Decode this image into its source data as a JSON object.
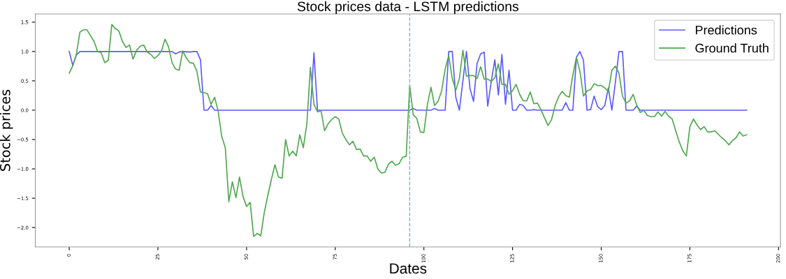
{
  "chart_data": {
    "type": "line",
    "title": "Stock prices data - LSTM predictions",
    "xlabel": "Dates",
    "ylabel": "Stock prices",
    "x": [
      0,
      1,
      2,
      3,
      4,
      5,
      6,
      7,
      8,
      9,
      10,
      11,
      12,
      13,
      14,
      15,
      16,
      17,
      18,
      19,
      20,
      21,
      22,
      23,
      24,
      25,
      26,
      27,
      28,
      29,
      30,
      31,
      32,
      33,
      34,
      35,
      36,
      37,
      38,
      39,
      40,
      41,
      42,
      43,
      44,
      45,
      46,
      47,
      48,
      49,
      50,
      51,
      52,
      53,
      54,
      55,
      56,
      57,
      58,
      59,
      60,
      61,
      62,
      63,
      64,
      65,
      66,
      67,
      68,
      69,
      70,
      71,
      72,
      73,
      74,
      75,
      76,
      77,
      78,
      79,
      80,
      81,
      82,
      83,
      84,
      85,
      86,
      87,
      88,
      89,
      90,
      91,
      92,
      93,
      94,
      95,
      96,
      97,
      98,
      99,
      100,
      101,
      102,
      103,
      104,
      105,
      106,
      107,
      108,
      109,
      110,
      111,
      112,
      113,
      114,
      115,
      116,
      117,
      118,
      119,
      120,
      121,
      122,
      123,
      124,
      125,
      126,
      127,
      128,
      129,
      130,
      131,
      132,
      133,
      134,
      135,
      136,
      137,
      138,
      139,
      140,
      141,
      142,
      143,
      144,
      145,
      146,
      147,
      148,
      149,
      150,
      151,
      152,
      153,
      154,
      155,
      156,
      157,
      158,
      159,
      160,
      161,
      162,
      163,
      164,
      165,
      166,
      167,
      168,
      169,
      170,
      171,
      172,
      173,
      174,
      175,
      176,
      177,
      178,
      179,
      180,
      181,
      182,
      183,
      184,
      185,
      186,
      187,
      188,
      189,
      190,
      191
    ],
    "series": [
      {
        "name": "Predictions",
        "color": "#5a5aff",
        "x": [
          0,
          1,
          2,
          3,
          29,
          30,
          31,
          32,
          34,
          35,
          36,
          37,
          38,
          39,
          40,
          41,
          68,
          69,
          70,
          96,
          97,
          98,
          102,
          103,
          104,
          106,
          107,
          108,
          109,
          110,
          111,
          112,
          113,
          114,
          115,
          116,
          117,
          118,
          119,
          120,
          121,
          122,
          123,
          124,
          125,
          126,
          127,
          128,
          129,
          130,
          131,
          132,
          139,
          140,
          141,
          142,
          143,
          144,
          145,
          146,
          147,
          148,
          149,
          150,
          151,
          152,
          153,
          154,
          155,
          156,
          157,
          159,
          160,
          161,
          191
        ],
        "values": [
          1.0,
          0.76,
          0.94,
          1.0,
          1.0,
          0.96,
          0.99,
          1.0,
          0.99,
          1.0,
          1.0,
          0.86,
          0.0,
          0.0,
          0.08,
          0.0,
          0.0,
          0.98,
          0.0,
          0.0,
          0.03,
          0.0,
          0.0,
          0.03,
          0.0,
          0.0,
          1.0,
          1.0,
          0.22,
          0.0,
          0.5,
          1.0,
          0.37,
          0.15,
          0.8,
          0.96,
          0.99,
          0.07,
          0.49,
          0.86,
          0.26,
          0.95,
          0.1,
          0.68,
          0.0,
          0.0,
          0.1,
          0.08,
          0.0,
          0.0,
          0.01,
          0.0,
          0.0,
          0.13,
          0.0,
          0.0,
          0.9,
          1.0,
          0.85,
          0.0,
          0.01,
          0.24,
          0.06,
          0.01,
          0.08,
          0.38,
          0.0,
          0.48,
          1.0,
          1.0,
          0.0,
          0.0,
          0.07,
          0.0,
          0.0
        ]
      },
      {
        "name": "Ground Truth",
        "color": "#4fa84f",
        "values": [
          0.63,
          0.76,
          0.95,
          1.33,
          1.37,
          1.37,
          1.27,
          1.17,
          1.0,
          0.98,
          0.81,
          0.85,
          1.46,
          1.39,
          1.35,
          1.17,
          1.07,
          1.11,
          0.87,
          1.02,
          1.09,
          1.11,
          0.99,
          0.95,
          0.88,
          0.93,
          1.01,
          1.21,
          1.08,
          0.81,
          0.7,
          0.68,
          1.01,
          0.89,
          0.81,
          0.8,
          0.66,
          0.31,
          0.3,
          0.28,
          0.1,
          0.22,
          -0.02,
          -0.45,
          -0.64,
          -1.56,
          -1.22,
          -1.49,
          -1.14,
          -1.47,
          -1.64,
          -1.57,
          -2.15,
          -2.1,
          -2.14,
          -1.74,
          -1.45,
          -1.18,
          -0.93,
          -1.14,
          -1.16,
          -0.5,
          -0.78,
          -0.7,
          -0.78,
          -0.42,
          -0.64,
          -0.23,
          0.73,
          0.1,
          -0.03,
          -0.01,
          -0.35,
          -0.23,
          -0.16,
          -0.11,
          -0.15,
          -0.39,
          -0.5,
          -0.59,
          -0.53,
          -0.67,
          -0.66,
          -0.78,
          -0.78,
          -0.87,
          -0.8,
          -1.0,
          -1.07,
          -1.06,
          -0.92,
          -0.87,
          -0.94,
          -0.91,
          -0.8,
          -0.79,
          0.42,
          -0.08,
          -0.14,
          -0.37,
          -0.38,
          0.1,
          0.39,
          0.08,
          0.15,
          0.33,
          0.7,
          0.93,
          0.54,
          0.34,
          0.54,
          1.02,
          0.58,
          0.59,
          0.59,
          0.54,
          0.74,
          0.53,
          0.53,
          0.49,
          0.55,
          0.79,
          0.44,
          0.44,
          0.27,
          0.33,
          0.44,
          0.27,
          0.16,
          0.16,
          0.31,
          0.11,
          0.12,
          0.01,
          -0.13,
          -0.26,
          -0.16,
          0.08,
          0.23,
          0.32,
          0.25,
          0.22,
          0.6,
          0.9,
          0.66,
          0.24,
          0.33,
          0.35,
          0.45,
          0.42,
          0.42,
          0.38,
          0.32,
          0.68,
          0.75,
          0.63,
          0.24,
          0.12,
          0.16,
          0.27,
          0.09,
          -0.04,
          0.0,
          -0.09,
          -0.11,
          -0.11,
          -0.03,
          -0.1,
          -0.02,
          -0.1,
          -0.15,
          -0.35,
          -0.54,
          -0.69,
          -0.78,
          -0.28,
          -0.15,
          -0.25,
          -0.33,
          -0.28,
          -0.37,
          -0.37,
          -0.35,
          -0.41,
          -0.47,
          -0.52,
          -0.59,
          -0.52,
          -0.47,
          -0.37,
          -0.44,
          -0.42
        ]
      }
    ],
    "xlim": [
      -9.55,
      200.55
    ],
    "xticks": [
      0,
      25,
      50,
      75,
      100,
      125,
      150,
      175,
      200
    ],
    "ylim": [
      -2.33,
      1.64
    ],
    "yticks": [
      {
        "value": -2.0,
        "label": "−2.0"
      },
      {
        "value": -1.5,
        "label": "−1.5"
      },
      {
        "value": -1.0,
        "label": "−1.0"
      },
      {
        "value": -0.5,
        "label": "−0.5"
      },
      {
        "value": 0.0,
        "label": "0.0"
      },
      {
        "value": 0.5,
        "label": "0.5"
      },
      {
        "value": 1.0,
        "label": "1.0"
      },
      {
        "value": 1.5,
        "label": "1.5"
      }
    ],
    "ref_lines": [
      {
        "axis": "x",
        "value": 96,
        "color": "#7fb3d5",
        "line_style": "dashed"
      }
    ],
    "grid": false,
    "legend": "top right",
    "line_style": "solid",
    "marker": "none"
  }
}
